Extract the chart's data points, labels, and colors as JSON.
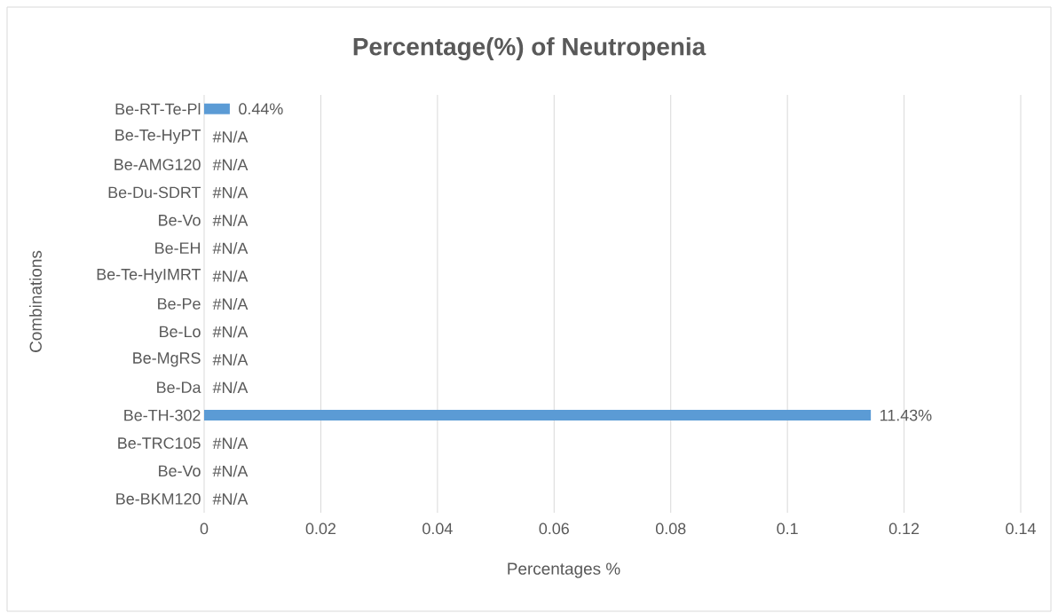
{
  "chart_data": {
    "type": "bar",
    "orientation": "horizontal",
    "title": "Percentage(%) of Neutropenia",
    "xlabel": "Percentages %",
    "ylabel": "Combinations",
    "categories": [
      "Be-RT-Te-Pl",
      "Be-Te-HyPT",
      "Be-AMG120",
      "Be-Du-SDRT",
      "Be-Vo",
      "Be-EH",
      "Be-Te-HyIMRT",
      "Be-Pe",
      "Be-Lo",
      "Be-MgRS",
      "Be-Da",
      "Be-TH-302",
      "Be-TRC105",
      "Be-Vo",
      "Be-BKM120"
    ],
    "values": [
      0.0044,
      null,
      null,
      null,
      null,
      null,
      null,
      null,
      null,
      null,
      null,
      0.1143,
      null,
      null,
      null
    ],
    "value_labels": [
      "0.44%",
      "#N/A",
      "#N/A",
      "#N/A",
      "#N/A",
      "#N/A",
      "#N/A",
      "#N/A",
      "#N/A",
      "#N/A",
      "#N/A",
      "11.43%",
      "#N/A",
      "#N/A",
      "#N/A"
    ],
    "color": "#5b9bd5",
    "xlim": [
      0,
      0.14
    ],
    "xticks": [
      0,
      0.02,
      0.04,
      0.06,
      0.08,
      0.1,
      0.12,
      0.14
    ],
    "grid": "x"
  }
}
